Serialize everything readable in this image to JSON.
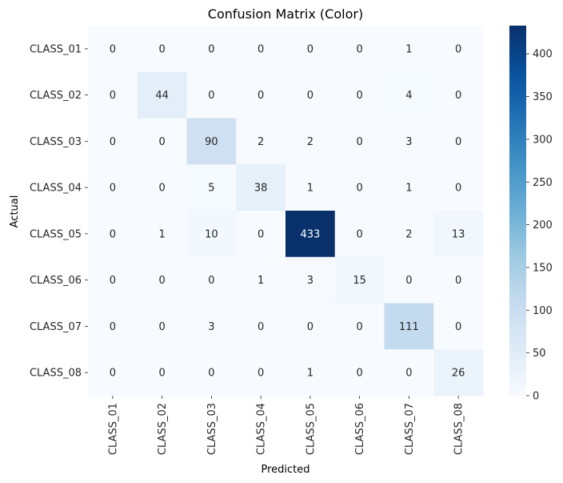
{
  "chart_data": {
    "type": "heatmap",
    "title": "Confusion Matrix (Color)",
    "xlabel": "Predicted",
    "ylabel": "Actual",
    "x_categories": [
      "CLASS_01",
      "CLASS_02",
      "CLASS_03",
      "CLASS_04",
      "CLASS_05",
      "CLASS_06",
      "CLASS_07",
      "CLASS_08"
    ],
    "y_categories": [
      "CLASS_01",
      "CLASS_02",
      "CLASS_03",
      "CLASS_04",
      "CLASS_05",
      "CLASS_06",
      "CLASS_07",
      "CLASS_08"
    ],
    "values": [
      [
        0,
        0,
        0,
        0,
        0,
        0,
        1,
        0
      ],
      [
        0,
        44,
        0,
        0,
        0,
        0,
        4,
        0
      ],
      [
        0,
        0,
        90,
        2,
        2,
        0,
        3,
        0
      ],
      [
        0,
        0,
        5,
        38,
        1,
        0,
        1,
        0
      ],
      [
        0,
        1,
        10,
        0,
        433,
        0,
        2,
        13
      ],
      [
        0,
        0,
        0,
        1,
        3,
        15,
        0,
        0
      ],
      [
        0,
        0,
        3,
        0,
        0,
        0,
        111,
        0
      ],
      [
        0,
        0,
        0,
        0,
        1,
        0,
        0,
        26
      ]
    ],
    "colorscale": "Blues",
    "vmin": 0,
    "vmax": 433,
    "colorbar_ticks": [
      "0",
      "50",
      "100",
      "150",
      "200",
      "250",
      "300",
      "350",
      "400"
    ]
  }
}
